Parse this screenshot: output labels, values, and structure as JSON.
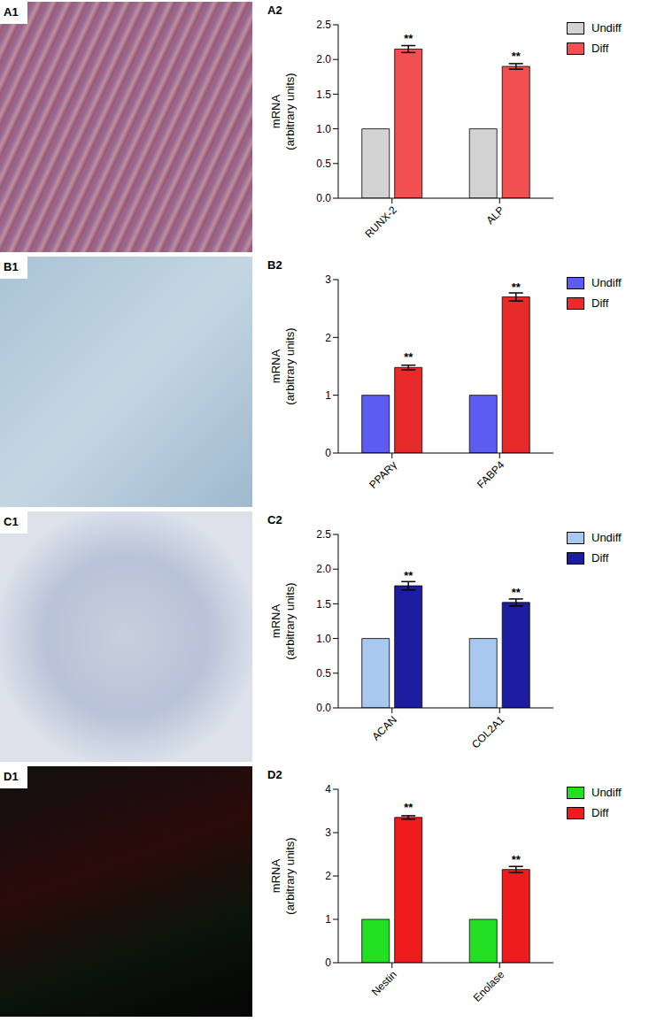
{
  "image_panels": [
    {
      "label": "A1"
    },
    {
      "label": "B1"
    },
    {
      "label": "C1"
    },
    {
      "label": "D1"
    }
  ],
  "chart_data": [
    {
      "type": "bar",
      "title": "A2",
      "ylabel": "mRNA\n(arbitrary units)",
      "categories": [
        "RUNX-2",
        "ALP"
      ],
      "series": [
        {
          "name": "Undiff",
          "color": "#d3d3d3",
          "values": [
            1,
            1
          ]
        },
        {
          "name": "Diff",
          "color": "#f25050",
          "values": [
            2.15,
            1.9
          ],
          "errors": [
            0.05,
            0.04
          ],
          "annotations": [
            "**",
            "**"
          ]
        }
      ],
      "ylim": [
        0,
        2.5
      ],
      "yticks": [
        {
          "value": 0,
          "label": "0.0"
        },
        0.5,
        {
          "value": 1,
          "label": "1.0"
        },
        1.5,
        {
          "value": 2,
          "label": "2.0"
        },
        2.5
      ],
      "legend": "upper right"
    },
    {
      "type": "bar",
      "title": "B2",
      "ylabel": "mRNA\n(arbitrary units)",
      "categories": [
        "PPARγ",
        "FABP4"
      ],
      "series": [
        {
          "name": "Undiff",
          "color": "#5c5cf2",
          "values": [
            1,
            1
          ]
        },
        {
          "name": "Diff",
          "color": "#e82a2a",
          "values": [
            1.48,
            2.7
          ],
          "errors": [
            0.04,
            0.07
          ],
          "annotations": [
            "**",
            "**"
          ]
        }
      ],
      "ylim": [
        0,
        3
      ],
      "yticks": [
        0,
        1,
        2,
        3
      ],
      "legend": "upper right"
    },
    {
      "type": "bar",
      "title": "C2",
      "ylabel": "mRNA\n(arbitrary units)",
      "categories": [
        "ACAN",
        "COL2A1"
      ],
      "series": [
        {
          "name": "Undiff",
          "color": "#a9c8f0",
          "values": [
            1,
            1
          ]
        },
        {
          "name": "Diff",
          "color": "#1c1ca0",
          "values": [
            1.76,
            1.52
          ],
          "errors": [
            0.06,
            0.05
          ],
          "annotations": [
            "**",
            "**"
          ]
        }
      ],
      "ylim": [
        0,
        2.5
      ],
      "yticks": [
        {
          "value": 0,
          "label": "0.0"
        },
        0.5,
        {
          "value": 1,
          "label": "1.0"
        },
        1.5,
        {
          "value": 2,
          "label": "2.0"
        },
        2.5
      ],
      "legend": "upper right"
    },
    {
      "type": "bar",
      "title": "D2",
      "ylabel": "mRNA\n(arbitrary units)",
      "categories": [
        "Nestin",
        "Enolase"
      ],
      "series": [
        {
          "name": "Undiff",
          "color": "#22e022",
          "values": [
            1,
            1
          ]
        },
        {
          "name": "Diff",
          "color": "#ee1c1c",
          "values": [
            3.35,
            2.15
          ],
          "errors": [
            0.04,
            0.07
          ],
          "annotations": [
            "**",
            "**"
          ]
        }
      ],
      "ylim": [
        0,
        4
      ],
      "yticks": [
        0,
        1,
        2,
        3,
        4
      ],
      "legend": "upper right"
    }
  ]
}
